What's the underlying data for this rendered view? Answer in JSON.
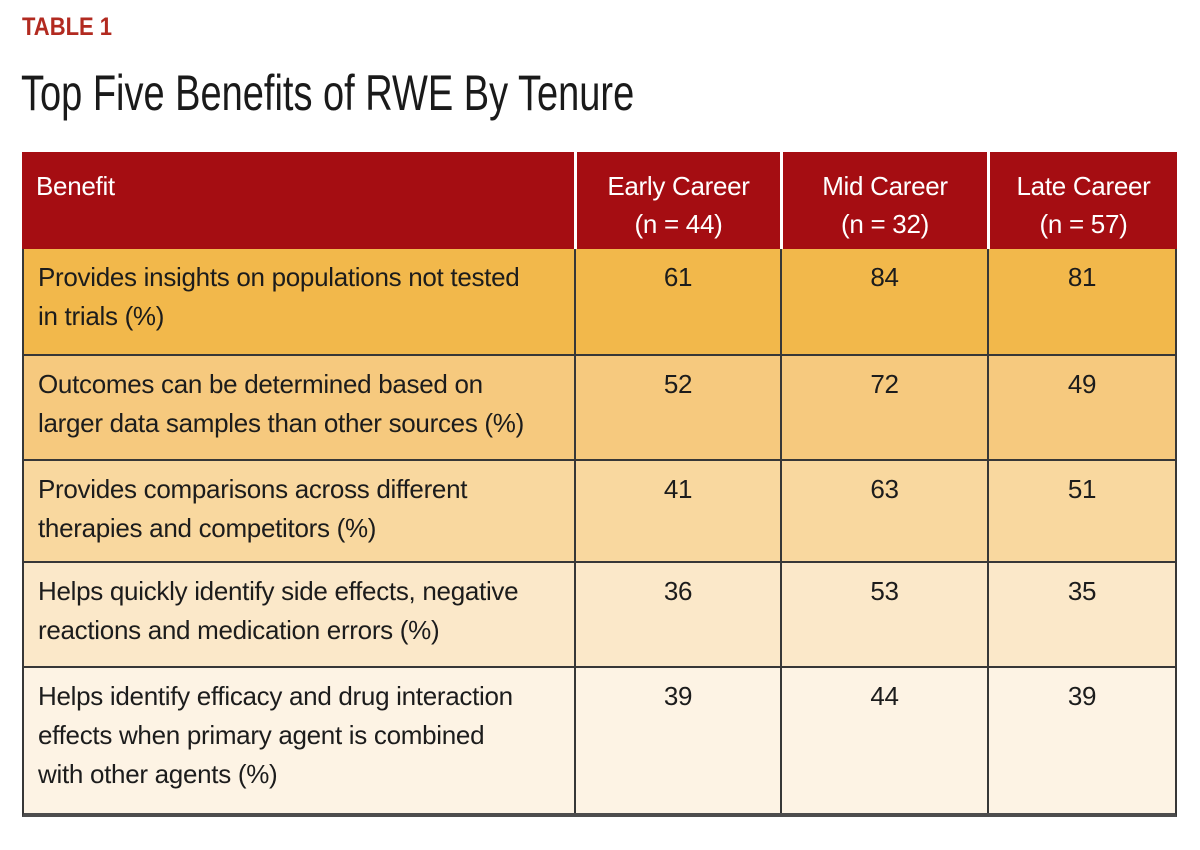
{
  "page": {
    "table_label": "TABLE 1",
    "title": "Top Five Benefits of RWE By Tenure"
  },
  "chart_data": {
    "type": "table",
    "title": "Top Five Benefits of RWE By Tenure",
    "col_headers": [
      {
        "label": "Benefit"
      },
      {
        "label": "Early Career",
        "n_label": "(n = 44)"
      },
      {
        "label": "Mid Career",
        "n_label": "(n = 32)"
      },
      {
        "label": "Late Career",
        "n_label": "(n = 57)"
      }
    ],
    "rows": [
      {
        "benefit": "Provides insights on populations not tested\nin trials (%)",
        "values": [
          61,
          84,
          81
        ]
      },
      {
        "benefit": "Outcomes can be determined based on\nlarger data samples than other sources (%)",
        "values": [
          52,
          72,
          49
        ]
      },
      {
        "benefit": "Provides comparisons across different\ntherapies and competitors (%)",
        "values": [
          41,
          63,
          51
        ]
      },
      {
        "benefit": "Helps quickly identify side effects, negative\nreactions and medication errors (%)",
        "values": [
          36,
          53,
          35
        ]
      },
      {
        "benefit": "Helps identify efficacy and drug interaction\neffects when primary agent is combined\nwith other agents (%)",
        "values": [
          39,
          44,
          39
        ]
      }
    ]
  },
  "colors": {
    "table_label_red": "#B22A20",
    "header_background": "#A50D12",
    "header_text": "#FFFFFF",
    "header_divider": "#FFFFFF",
    "row_backgrounds": [
      "#F2B84B",
      "#F6C97E",
      "#F9D89F",
      "#FBE8C9",
      "#FDF3E4"
    ],
    "grid_line": "#373737",
    "bottom_border": "#4D4D4D",
    "body_text": "#1C1C1C"
  }
}
